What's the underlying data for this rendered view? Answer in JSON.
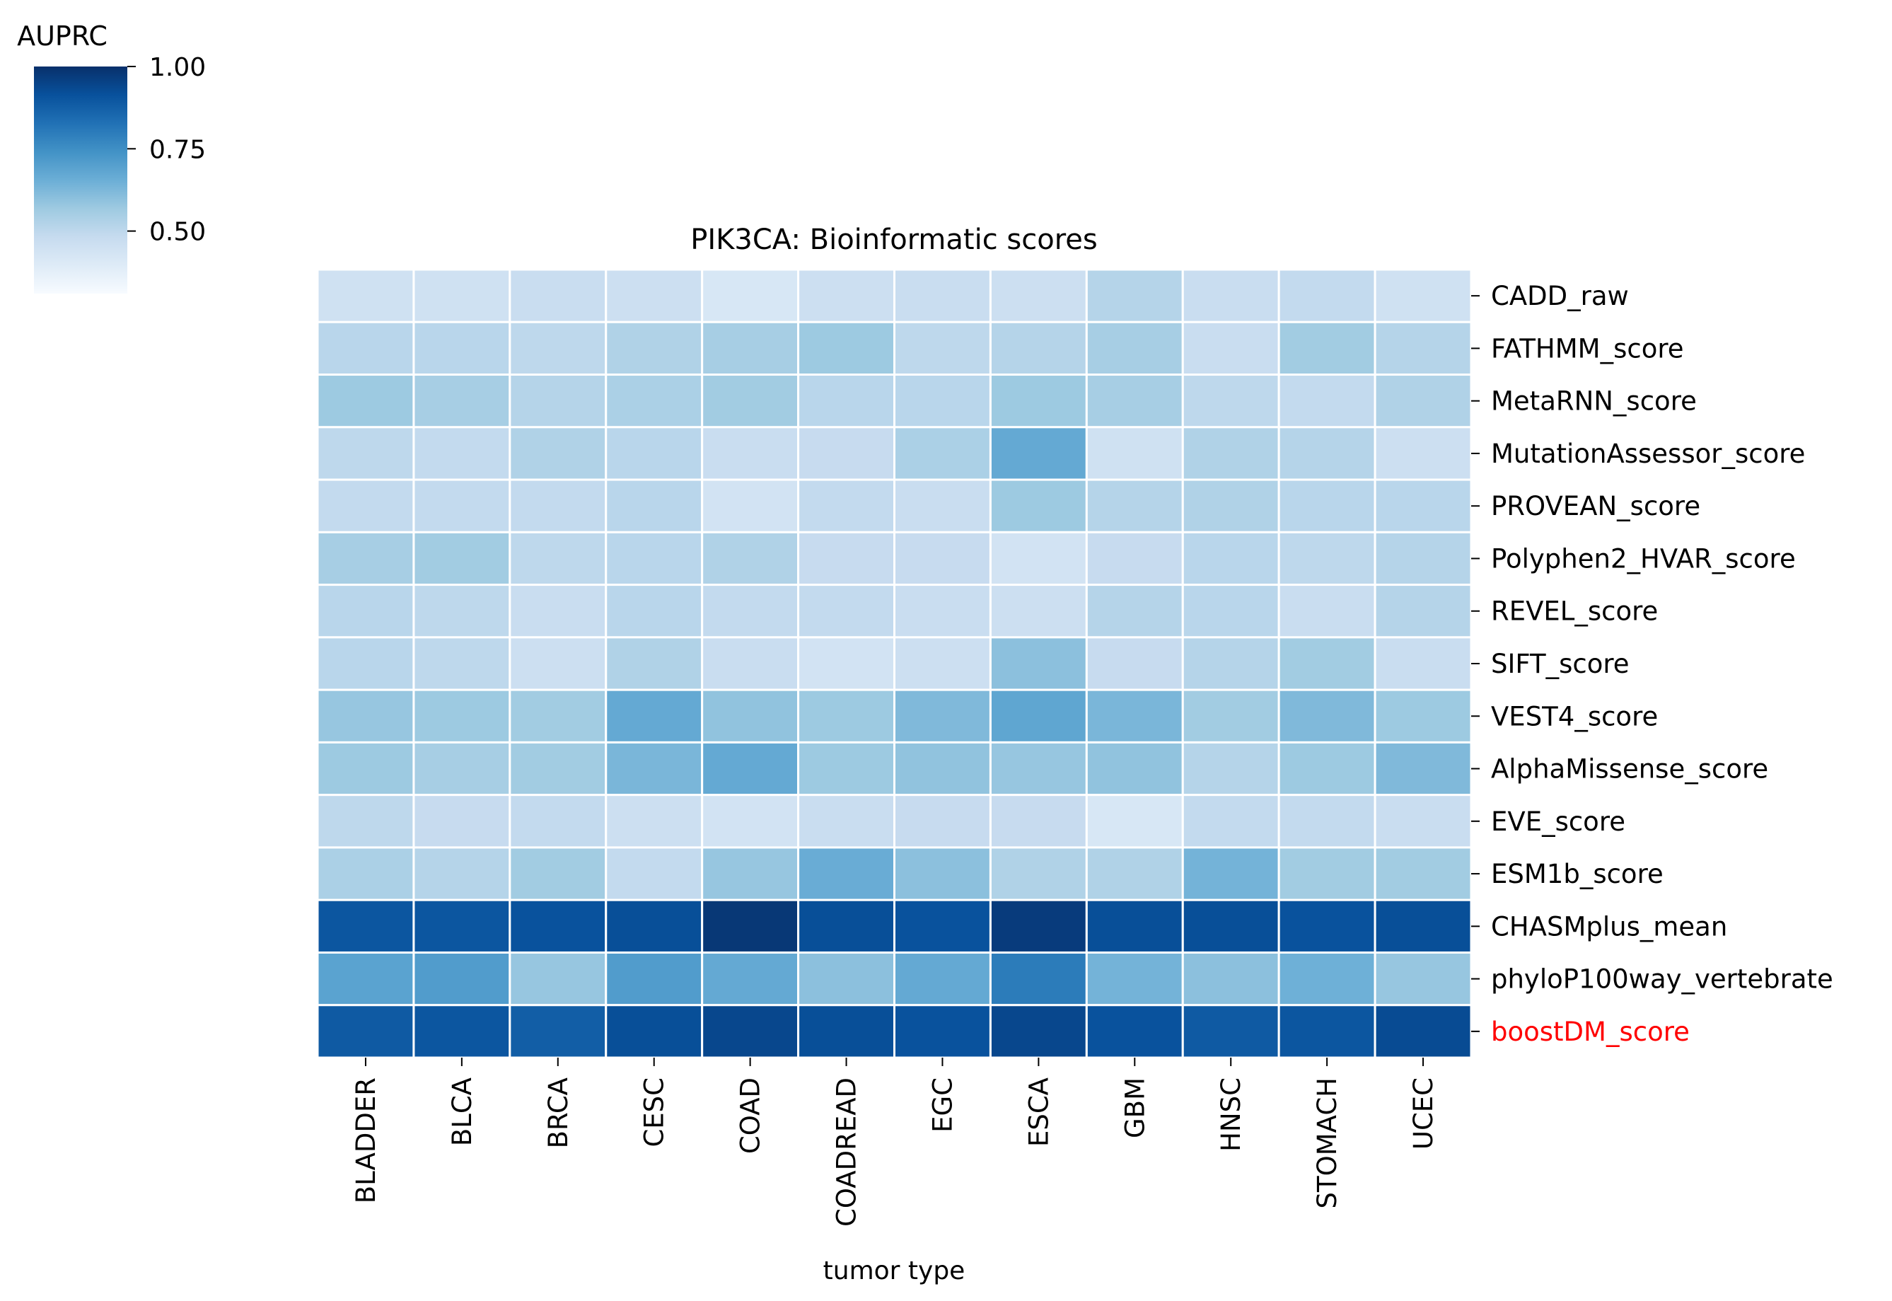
{
  "chart_data": {
    "type": "heatmap",
    "title": "PIK3CA: Bioinformatic scores",
    "xlabel": "tumor type",
    "ylabel": "",
    "colorbar": {
      "label": "AUPRC",
      "range": [
        0.31,
        1.0
      ],
      "ticks": [
        0.5,
        0.75,
        1.0
      ],
      "tick_labels": [
        "0.50",
        "0.75",
        "1.00"
      ],
      "colormap": "Blues"
    },
    "columns": [
      "BLADDER",
      "BLCA",
      "BRCA",
      "CESC",
      "COAD",
      "COADREAD",
      "EGC",
      "ESCA",
      "GBM",
      "HNSC",
      "STOMACH",
      "UCEC"
    ],
    "rows": [
      "CADD_raw",
      "FATHMM_score",
      "MetaRNN_score",
      "MutationAssessor_score",
      "PROVEAN_score",
      "Polyphen2_HVAR_score",
      "REVEL_score",
      "SIFT_score",
      "VEST4_score",
      "AlphaMissense_score",
      "EVE_score",
      "ESM1b_score",
      "CHASMplus_mean",
      "phyloP100way_vertebrate",
      "boostDM_score"
    ],
    "highlight_row": "boostDM_score",
    "highlight_color": "#ff0000",
    "values": [
      [
        0.45,
        0.45,
        0.47,
        0.46,
        0.42,
        0.46,
        0.47,
        0.46,
        0.52,
        0.47,
        0.49,
        0.45
      ],
      [
        0.51,
        0.51,
        0.5,
        0.53,
        0.55,
        0.57,
        0.5,
        0.52,
        0.55,
        0.47,
        0.56,
        0.52
      ],
      [
        0.57,
        0.55,
        0.52,
        0.54,
        0.56,
        0.51,
        0.51,
        0.57,
        0.55,
        0.5,
        0.49,
        0.53
      ],
      [
        0.5,
        0.49,
        0.53,
        0.51,
        0.47,
        0.48,
        0.54,
        0.67,
        0.45,
        0.53,
        0.52,
        0.46
      ],
      [
        0.49,
        0.49,
        0.49,
        0.51,
        0.44,
        0.49,
        0.47,
        0.57,
        0.52,
        0.53,
        0.51,
        0.51
      ],
      [
        0.55,
        0.56,
        0.5,
        0.51,
        0.53,
        0.48,
        0.48,
        0.44,
        0.48,
        0.51,
        0.5,
        0.52
      ],
      [
        0.51,
        0.5,
        0.47,
        0.51,
        0.49,
        0.49,
        0.47,
        0.46,
        0.52,
        0.51,
        0.47,
        0.52
      ],
      [
        0.51,
        0.5,
        0.46,
        0.53,
        0.47,
        0.44,
        0.46,
        0.6,
        0.48,
        0.52,
        0.56,
        0.47
      ],
      [
        0.58,
        0.57,
        0.56,
        0.67,
        0.59,
        0.57,
        0.62,
        0.68,
        0.63,
        0.56,
        0.62,
        0.57
      ],
      [
        0.57,
        0.55,
        0.56,
        0.63,
        0.67,
        0.57,
        0.59,
        0.58,
        0.59,
        0.52,
        0.57,
        0.62
      ],
      [
        0.5,
        0.48,
        0.49,
        0.46,
        0.44,
        0.47,
        0.48,
        0.48,
        0.42,
        0.49,
        0.49,
        0.47
      ],
      [
        0.54,
        0.52,
        0.56,
        0.49,
        0.58,
        0.66,
        0.6,
        0.53,
        0.53,
        0.64,
        0.56,
        0.56
      ],
      [
        0.9,
        0.9,
        0.91,
        0.92,
        0.98,
        0.92,
        0.91,
        0.97,
        0.92,
        0.92,
        0.91,
        0.92
      ],
      [
        0.69,
        0.71,
        0.58,
        0.71,
        0.67,
        0.6,
        0.67,
        0.8,
        0.64,
        0.6,
        0.65,
        0.58
      ],
      [
        0.89,
        0.9,
        0.88,
        0.92,
        0.94,
        0.92,
        0.91,
        0.94,
        0.91,
        0.89,
        0.9,
        0.93
      ]
    ]
  }
}
